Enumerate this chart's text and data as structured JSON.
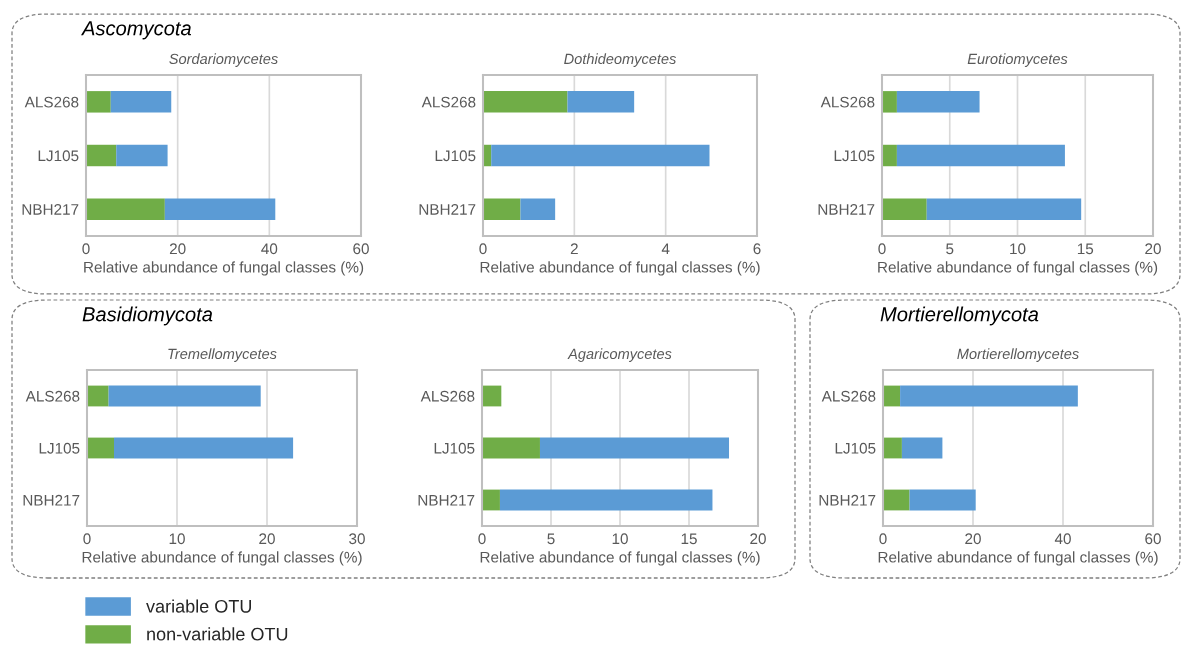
{
  "chart_data": [
    {
      "type": "bar",
      "orientation": "horizontal",
      "stacked": true,
      "title": "Sordariomycetes",
      "xlabel": "Relative abundance of fungal classes (%)",
      "annotations": [
        "Ascomycota"
      ],
      "categories": [
        "ALS268",
        "LJ105",
        "NBH217"
      ],
      "xlim": [
        0,
        60
      ],
      "xticks": [
        0,
        20,
        40,
        60
      ],
      "grid": "x",
      "legend": "bottom",
      "series": [
        {
          "name": "non-variable OTU",
          "color": "#70ad47",
          "values": [
            5.4,
            6.6,
            17.2
          ]
        },
        {
          "name": "variable OTU",
          "color": "#5b9bd5",
          "values": [
            13.2,
            11.2,
            24.1
          ]
        }
      ]
    },
    {
      "type": "bar",
      "orientation": "horizontal",
      "stacked": true,
      "title": "Dothideomycetes",
      "xlabel": "Relative abundance of fungal classes (%)",
      "categories": [
        "ALS268",
        "LJ105",
        "NBH217"
      ],
      "xlim": [
        0,
        6
      ],
      "xticks": [
        0,
        2,
        4,
        6
      ],
      "grid": "x",
      "series": [
        {
          "color": "#70ad47",
          "values": [
            1.85,
            0.18,
            0.82
          ]
        },
        {
          "color": "#5b9bd5",
          "values": [
            1.46,
            4.78,
            0.76
          ]
        }
      ]
    },
    {
      "type": "bar",
      "orientation": "horizontal",
      "stacked": true,
      "title": "Eurotiomycetes",
      "xlabel": "Relative abundance of fungal classes (%)",
      "categories": [
        "ALS268",
        "LJ105",
        "NBH217"
      ],
      "xlim": [
        0,
        20
      ],
      "xticks": [
        0,
        5,
        10,
        15,
        20
      ],
      "grid": "x",
      "series": [
        {
          "color": "#70ad47",
          "values": [
            1.1,
            1.1,
            3.3
          ]
        },
        {
          "color": "#5b9bd5",
          "values": [
            6.1,
            12.4,
            11.4
          ]
        }
      ]
    },
    {
      "type": "bar",
      "orientation": "horizontal",
      "stacked": true,
      "title": "Tremellomycetes",
      "xlabel": "Relative abundance of fungal classes (%)",
      "annotations": [
        "Basidiomycota"
      ],
      "categories": [
        "ALS268",
        "LJ105",
        "NBH217"
      ],
      "xlim": [
        0,
        30
      ],
      "xticks": [
        0,
        10,
        20,
        30
      ],
      "grid": "x",
      "series": [
        {
          "color": "#70ad47",
          "values": [
            2.4,
            3.0,
            null
          ]
        },
        {
          "color": "#5b9bd5",
          "values": [
            16.9,
            19.9,
            null
          ]
        }
      ]
    },
    {
      "type": "bar",
      "orientation": "horizontal",
      "stacked": true,
      "title": "Agaricomycetes",
      "xlabel": "Relative abundance of fungal classes (%)",
      "categories": [
        "ALS268",
        "LJ105",
        "NBH217"
      ],
      "xlim": [
        0,
        20
      ],
      "xticks": [
        0,
        5,
        10,
        15,
        20
      ],
      "grid": "x",
      "series": [
        {
          "color": "#70ad47",
          "values": [
            1.4,
            4.2,
            1.3
          ]
        },
        {
          "color": "#5b9bd5",
          "values": [
            null,
            13.7,
            15.4
          ]
        }
      ]
    },
    {
      "type": "bar",
      "orientation": "horizontal",
      "stacked": true,
      "title": "Mortierellomycetes",
      "xlabel": "Relative abundance of fungal classes (%)",
      "annotations": [
        "Mortierellomycota"
      ],
      "categories": [
        "ALS268",
        "LJ105",
        "NBH217"
      ],
      "xlim": [
        0,
        60
      ],
      "xticks": [
        0,
        20,
        40,
        60
      ],
      "grid": "x",
      "series": [
        {
          "color": "#70ad47",
          "values": [
            3.8,
            4.2,
            5.9
          ]
        },
        {
          "color": "#5b9bd5",
          "values": [
            39.5,
            9.0,
            14.7
          ]
        }
      ]
    }
  ]
}
